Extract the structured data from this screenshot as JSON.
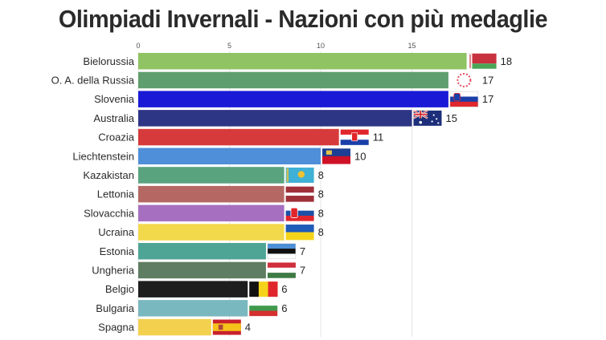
{
  "title": "Olimpiadi Invernali - Nazioni con più medaglie",
  "chart_data": {
    "type": "bar",
    "orientation": "horizontal",
    "title": "Olimpiadi Invernali - Nazioni con più medaglie",
    "xlim": [
      0,
      19
    ],
    "xticks": [
      0,
      5,
      10,
      15
    ],
    "grid": true,
    "legend": "none",
    "categories": [
      "Bielorussia",
      "O. A. della Russia",
      "Slovenia",
      "Australia",
      "Croazia",
      "Liechtenstein",
      "Kazakistan",
      "Lettonia",
      "Slovacchia",
      "Ucraina",
      "Estonia",
      "Ungheria",
      "Belgio",
      "Bulgaria",
      "Spagna"
    ],
    "values": [
      18,
      17,
      17,
      15,
      11,
      10,
      8,
      8,
      8,
      8,
      7,
      7,
      6,
      6,
      4
    ],
    "colors": [
      "#8fc363",
      "#5f9e6e",
      "#1a1ad6",
      "#2d3585",
      "#d73a3a",
      "#4f8fd9",
      "#5aa37f",
      "#b56863",
      "#a66fc0",
      "#f2d84b",
      "#4ea596",
      "#5f7d62",
      "#1e1e1e",
      "#7ab8c0",
      "#f3d14e"
    ],
    "flag_icons": [
      "belarus-flag-icon",
      "olympic-rings-icon",
      "slovenia-flag-icon",
      "australia-flag-icon",
      "croatia-flag-icon",
      "liechtenstein-flag-icon",
      "kazakhstan-flag-icon",
      "latvia-flag-icon",
      "slovakia-flag-icon",
      "ukraine-flag-icon",
      "estonia-flag-icon",
      "hungary-flag-icon",
      "belgium-flag-icon",
      "bulgaria-flag-icon",
      "spain-flag-icon"
    ]
  }
}
